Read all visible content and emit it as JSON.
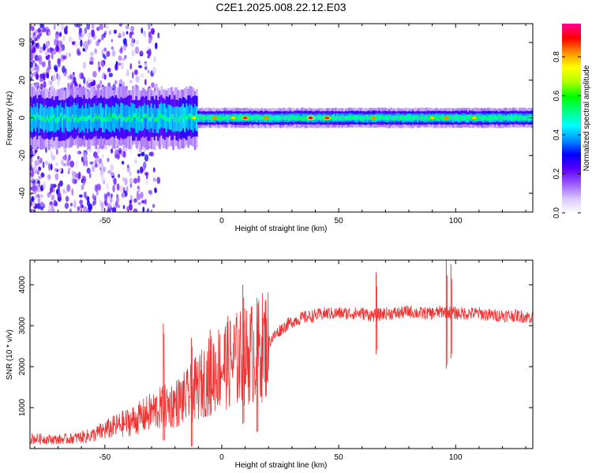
{
  "figure": {
    "title": "C2E1.2025.008.22.12.E03"
  },
  "chart_data": [
    {
      "type": "heatmap",
      "title": "C2E1.2025.008.22.12.E03",
      "xlabel": "Height of straight line (km)",
      "ylabel": "Frequency (Hz)",
      "xlim": [
        -82,
        133
      ],
      "ylim": [
        -50,
        50
      ],
      "x_ticks": [
        -50,
        0,
        50,
        100
      ],
      "x_tick_labels": [
        "-50",
        "0",
        "50",
        "100"
      ],
      "y_ticks": [
        -40,
        -20,
        0,
        20,
        40
      ],
      "y_tick_labels": [
        "-40",
        "-20",
        "0",
        "20",
        "40"
      ],
      "colorbar": {
        "label": "Normalized spectral amplitude",
        "range": [
          0,
          0.97
        ],
        "ticks": [
          0.0,
          0.2,
          0.4,
          0.6,
          0.8
        ],
        "tick_labels": [
          "0.0",
          "0.2",
          "0.4",
          "0.6",
          "0.8"
        ],
        "colormap": [
          "#ffffff",
          "#d6c4ff",
          "#9b59ff",
          "#5a00ff",
          "#0000ff",
          "#0090ff",
          "#00ffff",
          "#00ff80",
          "#00ff00",
          "#b0ff00",
          "#ffff00",
          "#ff9000",
          "#ff0000",
          "#ff0090"
        ]
      },
      "band_center_hz": 0,
      "band_halfwidth_hz": 4,
      "peaks": [
        {
          "x": -12,
          "amp": 0.75
        },
        {
          "x": -3,
          "amp": 0.85
        },
        {
          "x": 5,
          "amp": 0.8
        },
        {
          "x": 10,
          "amp": 0.9
        },
        {
          "x": 19,
          "amp": 0.85
        },
        {
          "x": 38,
          "amp": 0.95
        },
        {
          "x": 45,
          "amp": 0.9
        },
        {
          "x": 65,
          "amp": 0.85
        },
        {
          "x": 90,
          "amp": 0.8
        },
        {
          "x": 96,
          "amp": 0.85
        },
        {
          "x": 108,
          "amp": 0.8
        }
      ]
    },
    {
      "type": "line",
      "xlabel": "Height of straight line (km)",
      "ylabel": "SNR (10 * v/v)",
      "xlim": [
        -82,
        133
      ],
      "ylim": [
        0,
        4600
      ],
      "x_ticks": [
        -50,
        0,
        50,
        100
      ],
      "x_tick_labels": [
        "-50",
        "0",
        "50",
        "100"
      ],
      "y_ticks": [
        1000,
        2000,
        3000,
        4000
      ],
      "y_tick_labels": [
        "1000",
        "2000",
        "3000",
        "4000"
      ],
      "series": [
        {
          "color": "#ee3333",
          "x": [
            -82,
            -75,
            -70,
            -65,
            -60,
            -55,
            -50,
            -45,
            -40,
            -35,
            -30,
            -25,
            -20,
            -15,
            -10,
            -5,
            0,
            5,
            10,
            15,
            20,
            25,
            30,
            35,
            40,
            45,
            50,
            55,
            60,
            65,
            70,
            75,
            80,
            85,
            90,
            95,
            100,
            105,
            110,
            115,
            120,
            125,
            133
          ],
          "values": [
            250,
            230,
            220,
            240,
            280,
            330,
            450,
            550,
            650,
            750,
            900,
            1000,
            1100,
            1250,
            1500,
            1800,
            2050,
            2150,
            2250,
            2400,
            2600,
            2900,
            3100,
            3200,
            3250,
            3300,
            3300,
            3300,
            3300,
            3250,
            3300,
            3300,
            3350,
            3300,
            3300,
            3350,
            3300,
            3300,
            3300,
            3250,
            3250,
            3250,
            3200
          ]
        }
      ],
      "spikes": [
        {
          "x": -25,
          "top": 3050,
          "bottom": 200
        },
        {
          "x": -13,
          "top": 2700,
          "bottom": 50
        },
        {
          "x": -5,
          "top": 2900,
          "bottom": 800
        },
        {
          "x": 9,
          "top": 4000,
          "bottom": 600
        },
        {
          "x": 15,
          "top": 3100,
          "bottom": 400
        },
        {
          "x": 66,
          "top": 4300,
          "bottom": 2300
        },
        {
          "x": 96,
          "top": 4600,
          "bottom": 1950
        },
        {
          "x": 98,
          "top": 4500,
          "bottom": 2200
        }
      ]
    }
  ]
}
